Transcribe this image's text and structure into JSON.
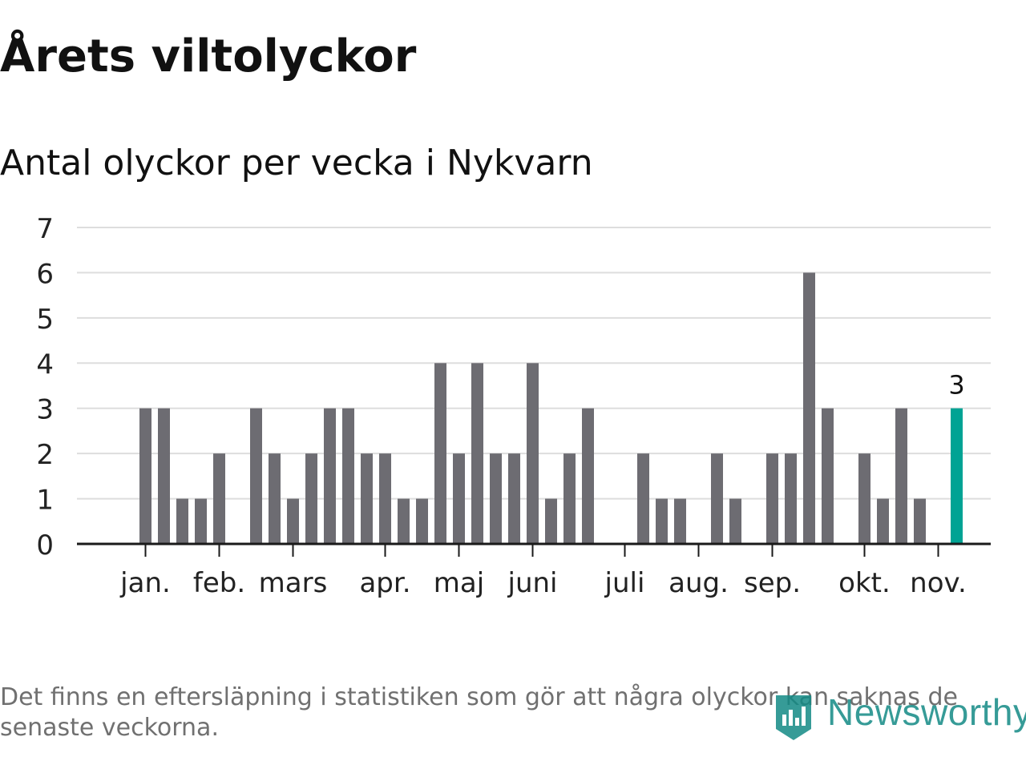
{
  "title": "Årets viltolyckor",
  "subtitle": "Antal olyckor per vecka i Nykvarn",
  "footnote": "Det finns en eftersläpning i statistiken som gör att några olyckor kan saknas de senaste veckorna.",
  "brand": {
    "name": "Newsworthy",
    "color": "#138a85"
  },
  "colors": {
    "bar": "#6d6c72",
    "highlight": "#00a394",
    "grid": "#dddddd",
    "axis": "#1a1a1a",
    "tick_text": "#222222"
  },
  "chart_data": {
    "type": "bar",
    "title": "Antal olyckor per vecka i Nykvarn",
    "xlabel": "",
    "ylabel": "",
    "ylim": [
      0,
      7
    ],
    "yticks": [
      0,
      1,
      2,
      3,
      4,
      5,
      6,
      7
    ],
    "grid": true,
    "weeks": [
      1,
      2,
      3,
      4,
      5,
      6,
      7,
      8,
      9,
      10,
      11,
      12,
      13,
      14,
      15,
      16,
      17,
      18,
      19,
      20,
      21,
      22,
      23,
      24,
      25,
      26,
      27,
      28,
      29,
      30,
      31,
      32,
      33,
      34,
      35,
      36,
      37,
      38,
      39,
      40,
      41,
      42,
      43,
      44,
      45,
      46,
      47
    ],
    "values": [
      0,
      0,
      3,
      3,
      1,
      1,
      2,
      0,
      3,
      2,
      1,
      2,
      3,
      3,
      2,
      2,
      1,
      1,
      4,
      2,
      4,
      2,
      2,
      4,
      1,
      2,
      3,
      0,
      0,
      2,
      1,
      1,
      0,
      2,
      1,
      0,
      2,
      2,
      6,
      3,
      0,
      2,
      1,
      3,
      1,
      0,
      3
    ],
    "highlight_index": 46,
    "highlight_label": "3",
    "month_labels": [
      {
        "label": "jan.",
        "week": 3
      },
      {
        "label": "feb.",
        "week": 7
      },
      {
        "label": "mars",
        "week": 11
      },
      {
        "label": "apr.",
        "week": 16
      },
      {
        "label": "maj",
        "week": 20
      },
      {
        "label": "juni",
        "week": 24
      },
      {
        "label": "juli",
        "week": 29
      },
      {
        "label": "aug.",
        "week": 33
      },
      {
        "label": "sep.",
        "week": 37
      },
      {
        "label": "okt.",
        "week": 42
      },
      {
        "label": "nov.",
        "week": 46
      }
    ]
  }
}
